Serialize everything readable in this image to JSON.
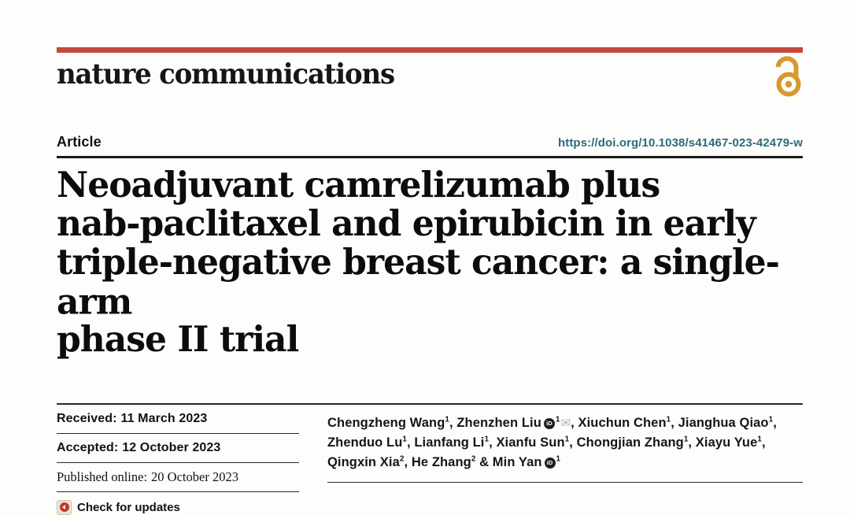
{
  "colors": {
    "masthead_bar": "#c6483c",
    "open_access_orange": "#d6992e",
    "doi_link": "#2b6b7d",
    "ink": "#121212",
    "crossmark_red": "#bf3a2d",
    "crossmark_beige": "#ede5d3"
  },
  "masthead": {
    "journal": "nature communications",
    "open_access_icon": "open-access-icon"
  },
  "article_header": {
    "type_label": "Article",
    "doi": "https://doi.org/10.1038/s41467-023-42479-w"
  },
  "title_lines": [
    "Neoadjuvant camrelizumab plus",
    "nab-paclitaxel and epirubicin in early",
    "triple-negative breast cancer: a single-arm",
    "phase II trial"
  ],
  "history": [
    {
      "label": "Received:",
      "date": "11 March 2023"
    },
    {
      "label": "Accepted:",
      "date": "12 October 2023"
    },
    {
      "label": "Published online:",
      "date": "20 October 2023"
    }
  ],
  "check_for_updates_label": "Check for updates",
  "authors": [
    {
      "name": "Chengzheng Wang",
      "sup": "1",
      "orcid": false,
      "email": false
    },
    {
      "name": "Zhenzhen Liu",
      "sup": "1",
      "orcid": true,
      "email": true
    },
    {
      "name": "Xiuchun Chen",
      "sup": "1",
      "orcid": false,
      "email": false
    },
    {
      "name": "Jianghua Qiao",
      "sup": "1",
      "orcid": false,
      "email": false
    },
    {
      "name": "Zhenduo Lu",
      "sup": "1",
      "orcid": false,
      "email": false
    },
    {
      "name": "Lianfang Li",
      "sup": "1",
      "orcid": false,
      "email": false
    },
    {
      "name": "Xianfu Sun",
      "sup": "1",
      "orcid": false,
      "email": false
    },
    {
      "name": "Chongjian Zhang",
      "sup": "1",
      "orcid": false,
      "email": false
    },
    {
      "name": "Xiayu Yue",
      "sup": "1",
      "orcid": false,
      "email": false
    },
    {
      "name": "Qingxin Xia",
      "sup": "2",
      "orcid": false,
      "email": false
    },
    {
      "name": "He Zhang",
      "sup": "2",
      "orcid": false,
      "email": false
    },
    {
      "name": "Min Yan",
      "sup": "1",
      "orcid": true,
      "email": false
    }
  ]
}
